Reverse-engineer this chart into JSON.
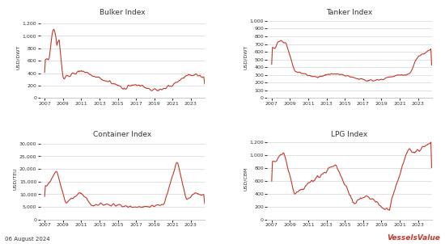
{
  "title_bulker": "Bulker Index",
  "title_tanker": "Tanker Index",
  "title_container": "Container Index",
  "title_lpg": "LPG Index",
  "ylabel_bulker": "USD/DWT",
  "ylabel_tanker": "USD/DWT",
  "ylabel_container": "USD/TEU",
  "ylabel_lpg": "USD/CBM",
  "date_label": "06 August 2024",
  "line_color": "#c0392b",
  "line_width": 0.8,
  "bg_color": "#ffffff",
  "grid_color": "#cccccc",
  "font_color": "#333333",
  "watermark": "VesselsValue",
  "watermark_color": "#c0392b",
  "year_start": 2007,
  "year_end": 2024
}
